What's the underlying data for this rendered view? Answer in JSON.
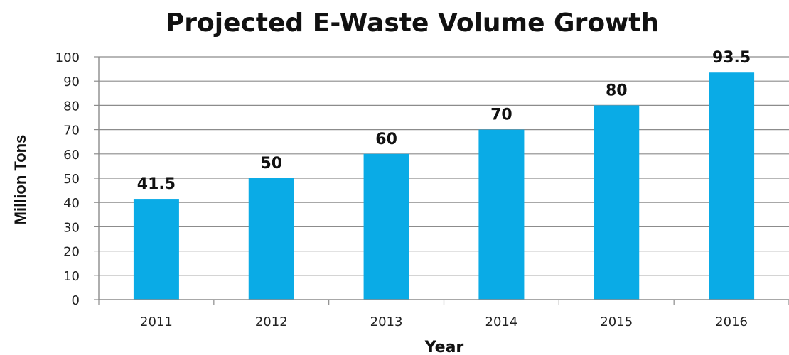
{
  "chart_data": {
    "type": "bar",
    "title": "Projected E-Waste Volume Growth",
    "xlabel": "Year",
    "ylabel": "Million Tons",
    "categories": [
      "2011",
      "2012",
      "2013",
      "2014",
      "2015",
      "2016"
    ],
    "values": [
      41.5,
      50,
      60,
      70,
      80,
      93.5
    ],
    "data_labels": [
      "41.5",
      "50",
      "60",
      "70",
      "80",
      "93.5"
    ],
    "ylim": [
      0,
      100
    ],
    "yticks": [
      0,
      10,
      20,
      30,
      40,
      50,
      60,
      70,
      80,
      90,
      100
    ],
    "ytick_labels": [
      "0",
      "10",
      "20",
      "30",
      "40",
      "50",
      "60",
      "70",
      "80",
      "90",
      "100"
    ],
    "grid": true,
    "legend": "none",
    "colors": {
      "bar": "#0aabe6",
      "grid": "#8c8c8c",
      "axis": "#8c8c8c"
    }
  }
}
